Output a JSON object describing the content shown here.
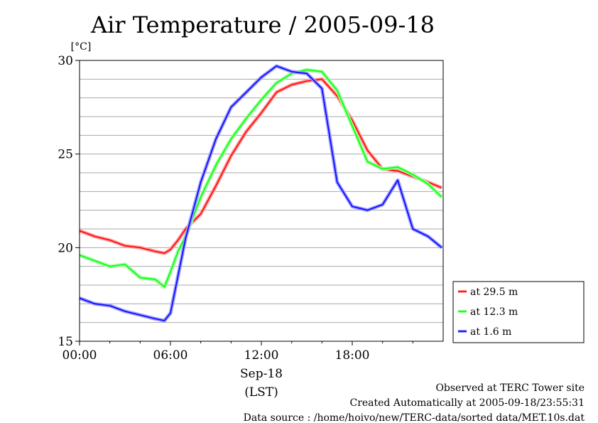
{
  "chart_data": {
    "type": "line",
    "title": "Air Temperature / 2005-09-18",
    "ylabel": "[°C]",
    "xlabel": "(LST)",
    "date_label": "Sep-18",
    "ylim": [
      15,
      30
    ],
    "xlim": [
      0,
      24
    ],
    "y_ticks": [
      "15",
      "20",
      "25",
      "30"
    ],
    "x_ticks": [
      "00:00",
      "06:00",
      "12:00",
      "18:00"
    ],
    "x_tick_values": [
      0,
      6,
      12,
      18
    ],
    "grid": true,
    "legend_position": "right-bottom",
    "x": [
      0,
      1,
      2,
      3,
      4,
      5,
      5.6,
      6,
      6.5,
      7,
      8,
      9,
      10,
      11,
      12,
      13,
      14,
      15,
      16,
      17,
      18,
      19,
      20,
      21,
      22,
      23,
      23.9
    ],
    "series": [
      {
        "name": "at 29.5 m",
        "color": "#ff0000",
        "values": [
          20.9,
          20.6,
          20.4,
          20.1,
          20.0,
          19.8,
          19.7,
          19.9,
          20.4,
          21.0,
          21.8,
          23.3,
          24.9,
          26.2,
          27.2,
          28.3,
          28.7,
          28.9,
          29.0,
          28.1,
          26.8,
          25.2,
          24.2,
          24.1,
          23.8,
          23.5,
          23.2
        ]
      },
      {
        "name": "at 12.3 m",
        "color": "#00ff00",
        "values": [
          19.6,
          19.3,
          19.0,
          19.1,
          18.4,
          18.3,
          17.9,
          18.7,
          19.8,
          20.6,
          22.7,
          24.4,
          25.8,
          26.9,
          27.9,
          28.8,
          29.3,
          29.5,
          29.4,
          28.4,
          26.5,
          24.6,
          24.2,
          24.3,
          23.9,
          23.4,
          22.7
        ]
      },
      {
        "name": "at 1.6 m",
        "color": "#0000ff",
        "values": [
          17.3,
          17.0,
          16.9,
          16.6,
          16.4,
          16.2,
          16.1,
          16.5,
          18.5,
          20.5,
          23.5,
          25.8,
          27.5,
          28.3,
          29.1,
          29.7,
          29.4,
          29.3,
          28.5,
          23.5,
          22.2,
          22.0,
          22.3,
          23.6,
          21.0,
          20.6,
          20.0
        ]
      }
    ]
  },
  "footer": {
    "line1": "Observed at TERC Tower site",
    "line2": "Created Automatically at 2005-09-18/23:55:31",
    "line3": "Data source : /home/hoivo/new/TERC-data/sorted data/MET.10s.dat"
  }
}
